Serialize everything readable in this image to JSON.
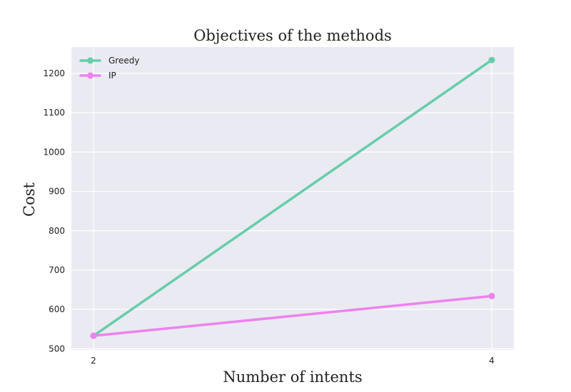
{
  "chart_data": {
    "type": "line",
    "title": "Objectives of the methods",
    "xlabel": "Number of intents",
    "ylabel": "Cost",
    "x": [
      2,
      4
    ],
    "xticks": [
      2,
      4
    ],
    "yticks": [
      500,
      600,
      700,
      800,
      900,
      1000,
      1100,
      1200
    ],
    "ylim": [
      497,
      1267
    ],
    "grid": true,
    "legend_position": "top-left",
    "series": [
      {
        "name": "Greedy",
        "values": [
          533,
          1234
        ],
        "color": "#66cdaa"
      },
      {
        "name": "IP",
        "values": [
          533,
          634
        ],
        "color": "#ee82ee"
      }
    ]
  }
}
